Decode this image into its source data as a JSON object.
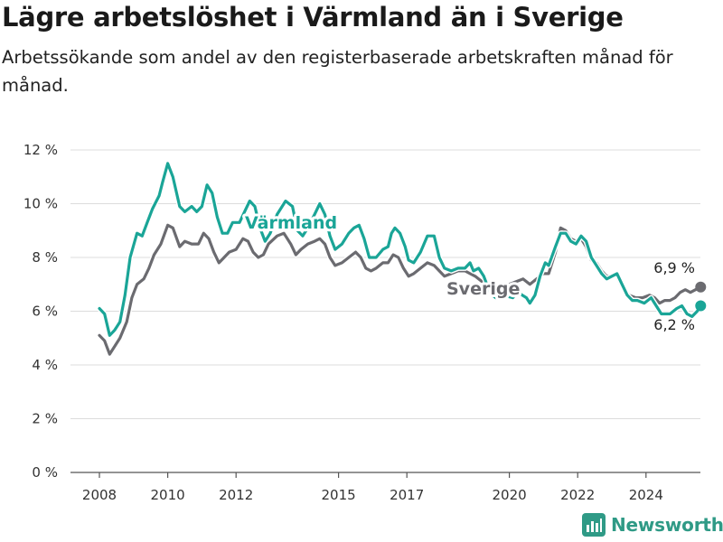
{
  "title": "Lägre arbetslöshet i Värmland än i Sverige",
  "subtitle": "Arbetssökande som andel av den registerbaserade arbetskraften månad för månad.",
  "logo": {
    "text": "Newsworthy",
    "icon": "bar-chart-logo-icon",
    "color": "#2f9a86"
  },
  "colors": {
    "varmland": "#1aa597",
    "sverige": "#6b6b70",
    "grid": "#dcdcdc"
  },
  "chart_data": {
    "type": "line",
    "title": "",
    "xlabel": "",
    "ylabel": "",
    "xlim": [
      2007.5,
      2025.6
    ],
    "ylim": [
      0,
      12
    ],
    "y_ticks": [
      0,
      2,
      4,
      6,
      8,
      10,
      12
    ],
    "y_tick_labels": [
      "0 %",
      "2 %",
      "4 %",
      "6 %",
      "8 %",
      "10 %",
      "12 %"
    ],
    "x_ticks": [
      2008,
      2010,
      2012,
      2015,
      2017,
      2020,
      2022,
      2024
    ],
    "x_tick_labels": [
      "2008",
      "2010",
      "2012",
      "2015",
      "2017",
      "2020",
      "2022",
      "2024"
    ],
    "grid": true,
    "series": [
      {
        "name": "Värmland",
        "color": "#1aa597",
        "end_label": "6,2 %",
        "points": [
          [
            2008.0,
            6.1
          ],
          [
            2008.15,
            5.9
          ],
          [
            2008.3,
            5.1
          ],
          [
            2008.45,
            5.3
          ],
          [
            2008.6,
            5.6
          ],
          [
            2008.75,
            6.6
          ],
          [
            2008.9,
            8.0
          ],
          [
            2009.1,
            8.9
          ],
          [
            2009.25,
            8.8
          ],
          [
            2009.4,
            9.3
          ],
          [
            2009.55,
            9.8
          ],
          [
            2009.75,
            10.3
          ],
          [
            2009.85,
            10.8
          ],
          [
            2010.0,
            11.5
          ],
          [
            2010.15,
            11.0
          ],
          [
            2010.35,
            9.9
          ],
          [
            2010.5,
            9.7
          ],
          [
            2010.7,
            9.9
          ],
          [
            2010.85,
            9.7
          ],
          [
            2011.0,
            9.9
          ],
          [
            2011.15,
            10.7
          ],
          [
            2011.3,
            10.4
          ],
          [
            2011.45,
            9.5
          ],
          [
            2011.6,
            8.9
          ],
          [
            2011.75,
            8.9
          ],
          [
            2011.9,
            9.3
          ],
          [
            2012.1,
            9.3
          ],
          [
            2012.25,
            9.7
          ],
          [
            2012.4,
            10.1
          ],
          [
            2012.55,
            9.9
          ],
          [
            2012.7,
            9.1
          ],
          [
            2012.85,
            8.6
          ],
          [
            2013.0,
            8.9
          ],
          [
            2013.2,
            9.6
          ],
          [
            2013.45,
            10.1
          ],
          [
            2013.65,
            9.9
          ],
          [
            2013.8,
            9.0
          ],
          [
            2013.95,
            8.8
          ],
          [
            2014.1,
            9.1
          ],
          [
            2014.3,
            9.6
          ],
          [
            2014.45,
            10.0
          ],
          [
            2014.6,
            9.6
          ],
          [
            2014.75,
            8.8
          ],
          [
            2014.9,
            8.3
          ],
          [
            2015.1,
            8.5
          ],
          [
            2015.3,
            8.9
          ],
          [
            2015.45,
            9.1
          ],
          [
            2015.6,
            9.2
          ],
          [
            2015.75,
            8.7
          ],
          [
            2015.9,
            8.0
          ],
          [
            2016.1,
            8.0
          ],
          [
            2016.3,
            8.3
          ],
          [
            2016.45,
            8.4
          ],
          [
            2016.55,
            8.9
          ],
          [
            2016.65,
            9.1
          ],
          [
            2016.8,
            8.9
          ],
          [
            2016.95,
            8.4
          ],
          [
            2017.05,
            7.9
          ],
          [
            2017.2,
            7.8
          ],
          [
            2017.4,
            8.2
          ],
          [
            2017.6,
            8.8
          ],
          [
            2017.8,
            8.8
          ],
          [
            2017.95,
            8.0
          ],
          [
            2018.1,
            7.6
          ],
          [
            2018.3,
            7.5
          ],
          [
            2018.5,
            7.6
          ],
          [
            2018.7,
            7.6
          ],
          [
            2018.85,
            7.8
          ],
          [
            2018.95,
            7.5
          ],
          [
            2019.1,
            7.6
          ],
          [
            2019.25,
            7.3
          ],
          [
            2019.4,
            6.8
          ],
          [
            2019.5,
            6.6
          ],
          [
            2019.6,
            6.5
          ],
          [
            2019.8,
            6.6
          ],
          [
            2020.1,
            6.5
          ],
          [
            2020.25,
            6.7
          ],
          [
            2020.5,
            6.5
          ],
          [
            2020.6,
            6.3
          ],
          [
            2020.75,
            6.6
          ],
          [
            2020.9,
            7.3
          ],
          [
            2021.05,
            7.8
          ],
          [
            2021.15,
            7.7
          ],
          [
            2021.35,
            8.4
          ],
          [
            2021.5,
            8.9
          ],
          [
            2021.65,
            8.9
          ],
          [
            2021.8,
            8.6
          ],
          [
            2021.95,
            8.5
          ],
          [
            2022.1,
            8.8
          ],
          [
            2022.25,
            8.6
          ],
          [
            2022.4,
            8.0
          ],
          [
            2022.55,
            7.7
          ],
          [
            2022.7,
            7.4
          ],
          [
            2022.85,
            7.2
          ],
          [
            2023.0,
            7.3
          ],
          [
            2023.15,
            7.4
          ],
          [
            2023.3,
            7.0
          ],
          [
            2023.45,
            6.6
          ],
          [
            2023.6,
            6.4
          ],
          [
            2023.75,
            6.4
          ],
          [
            2023.95,
            6.3
          ],
          [
            2024.15,
            6.5
          ],
          [
            2024.3,
            6.2
          ],
          [
            2024.45,
            5.9
          ],
          [
            2024.7,
            5.9
          ],
          [
            2024.9,
            6.1
          ],
          [
            2025.05,
            6.2
          ],
          [
            2025.2,
            5.9
          ],
          [
            2025.35,
            5.8
          ],
          [
            2025.5,
            6.0
          ],
          [
            2025.6,
            6.2
          ]
        ]
      },
      {
        "name": "Sverige",
        "color": "#6b6b70",
        "end_label": "6,9 %",
        "points": [
          [
            2008.0,
            5.1
          ],
          [
            2008.15,
            4.9
          ],
          [
            2008.3,
            4.4
          ],
          [
            2008.45,
            4.7
          ],
          [
            2008.6,
            5.0
          ],
          [
            2008.8,
            5.6
          ],
          [
            2008.95,
            6.5
          ],
          [
            2009.1,
            7.0
          ],
          [
            2009.3,
            7.2
          ],
          [
            2009.45,
            7.6
          ],
          [
            2009.6,
            8.1
          ],
          [
            2009.8,
            8.5
          ],
          [
            2010.0,
            9.2
          ],
          [
            2010.15,
            9.1
          ],
          [
            2010.35,
            8.4
          ],
          [
            2010.5,
            8.6
          ],
          [
            2010.7,
            8.5
          ],
          [
            2010.9,
            8.5
          ],
          [
            2011.05,
            8.9
          ],
          [
            2011.2,
            8.7
          ],
          [
            2011.35,
            8.2
          ],
          [
            2011.5,
            7.8
          ],
          [
            2011.65,
            8.0
          ],
          [
            2011.8,
            8.2
          ],
          [
            2012.0,
            8.3
          ],
          [
            2012.2,
            8.7
          ],
          [
            2012.35,
            8.6
          ],
          [
            2012.5,
            8.2
          ],
          [
            2012.65,
            8.0
          ],
          [
            2012.8,
            8.1
          ],
          [
            2012.95,
            8.5
          ],
          [
            2013.2,
            8.8
          ],
          [
            2013.4,
            8.9
          ],
          [
            2013.6,
            8.5
          ],
          [
            2013.75,
            8.1
          ],
          [
            2013.9,
            8.3
          ],
          [
            2014.1,
            8.5
          ],
          [
            2014.3,
            8.6
          ],
          [
            2014.45,
            8.7
          ],
          [
            2014.6,
            8.5
          ],
          [
            2014.75,
            8.0
          ],
          [
            2014.9,
            7.7
          ],
          [
            2015.1,
            7.8
          ],
          [
            2015.3,
            8.0
          ],
          [
            2015.5,
            8.2
          ],
          [
            2015.65,
            8.0
          ],
          [
            2015.8,
            7.6
          ],
          [
            2015.95,
            7.5
          ],
          [
            2016.1,
            7.6
          ],
          [
            2016.3,
            7.8
          ],
          [
            2016.45,
            7.8
          ],
          [
            2016.6,
            8.1
          ],
          [
            2016.75,
            8.0
          ],
          [
            2016.9,
            7.6
          ],
          [
            2017.05,
            7.3
          ],
          [
            2017.2,
            7.4
          ],
          [
            2017.4,
            7.6
          ],
          [
            2017.6,
            7.8
          ],
          [
            2017.8,
            7.7
          ],
          [
            2017.95,
            7.5
          ],
          [
            2018.1,
            7.3
          ],
          [
            2018.3,
            7.4
          ],
          [
            2018.5,
            7.5
          ],
          [
            2018.7,
            7.5
          ],
          [
            2018.85,
            7.4
          ],
          [
            2019.0,
            7.3
          ],
          [
            2019.2,
            7.1
          ],
          [
            2019.4,
            7.0
          ],
          [
            2019.6,
            6.9
          ],
          [
            2019.8,
            6.8
          ],
          [
            2020.0,
            7.0
          ],
          [
            2020.2,
            7.1
          ],
          [
            2020.4,
            7.2
          ],
          [
            2020.6,
            7.0
          ],
          [
            2020.8,
            7.2
          ],
          [
            2021.0,
            7.4
          ],
          [
            2021.15,
            7.4
          ],
          [
            2021.35,
            8.2
          ],
          [
            2021.5,
            9.1
          ],
          [
            2021.65,
            9.0
          ],
          [
            2021.8,
            8.7
          ],
          [
            2021.95,
            8.6
          ],
          [
            2022.1,
            8.7
          ],
          [
            2022.25,
            8.4
          ],
          [
            2022.4,
            7.9
          ],
          [
            2022.55,
            7.8
          ],
          [
            2022.7,
            7.5
          ],
          [
            2022.85,
            7.3
          ],
          [
            2023.0,
            7.3
          ],
          [
            2023.15,
            7.3
          ],
          [
            2023.3,
            6.9
          ],
          [
            2023.5,
            6.6
          ],
          [
            2023.7,
            6.5
          ],
          [
            2023.9,
            6.5
          ],
          [
            2024.1,
            6.6
          ],
          [
            2024.25,
            6.5
          ],
          [
            2024.4,
            6.3
          ],
          [
            2024.55,
            6.4
          ],
          [
            2024.7,
            6.4
          ],
          [
            2024.85,
            6.5
          ],
          [
            2025.0,
            6.7
          ],
          [
            2025.15,
            6.8
          ],
          [
            2025.3,
            6.7
          ],
          [
            2025.45,
            6.8
          ],
          [
            2025.6,
            6.9
          ]
        ]
      }
    ]
  }
}
